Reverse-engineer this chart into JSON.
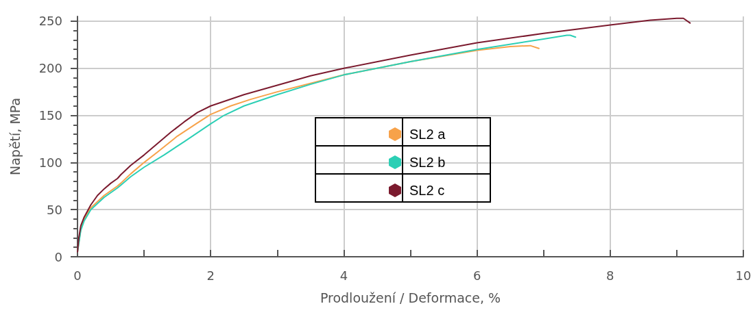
{
  "chart_data": {
    "type": "line",
    "xlabel": "Prodloužení / Deformace, %",
    "ylabel": "Napětí, MPa",
    "xlim": [
      0,
      10
    ],
    "xticks": [
      0,
      2,
      4,
      6,
      8,
      10
    ],
    "ylim": [
      0,
      255
    ],
    "yticks": [
      0,
      50,
      100,
      150,
      200,
      250
    ],
    "grid": true,
    "legend": "center",
    "marker": "none",
    "line_style": "solid",
    "series": [
      {
        "name": "SL2 a",
        "color": "#f7a24a",
        "x": [
          0,
          0.05,
          0.1,
          0.2,
          0.4,
          0.6,
          0.65,
          0.8,
          1.0,
          1.2,
          1.5,
          1.8,
          2.0,
          2.3,
          2.6,
          3,
          3.5,
          4,
          5,
          6,
          6.5,
          6.8,
          6.93
        ],
        "values": [
          5,
          30,
          40,
          52,
          65,
          75,
          78,
          88,
          100,
          111,
          128,
          142,
          151,
          160,
          167,
          175,
          184,
          193,
          207,
          219,
          223,
          224,
          221
        ]
      },
      {
        "name": "SL2 b",
        "color": "#2ccfb5",
        "x": [
          0,
          0.05,
          0.1,
          0.2,
          0.4,
          0.6,
          0.65,
          0.8,
          1.0,
          1.3,
          1.6,
          2.0,
          2.2,
          2.5,
          3,
          3.5,
          4,
          5,
          6,
          7,
          7.35,
          7.4,
          7.48
        ],
        "values": [
          5,
          28,
          38,
          50,
          63,
          73,
          76,
          85,
          95,
          108,
          122,
          141,
          150,
          160,
          172,
          183,
          193,
          207,
          220,
          231,
          235,
          235,
          233
        ]
      },
      {
        "name": "SL2 c",
        "color": "#7b1a2e",
        "x": [
          0,
          0.02,
          0.05,
          0.1,
          0.2,
          0.3,
          0.4,
          0.5,
          0.6,
          0.65,
          0.8,
          1.0,
          1.2,
          1.4,
          1.6,
          1.8,
          2.0,
          2.5,
          3,
          3.5,
          4,
          5,
          6,
          7,
          8,
          8.6,
          9.0,
          9.1,
          9.2
        ],
        "values": [
          5,
          20,
          33,
          42,
          55,
          65,
          72,
          78,
          83,
          87,
          97,
          108,
          120,
          132,
          143,
          153,
          160,
          172,
          182,
          192,
          200,
          214,
          227,
          237,
          246,
          251,
          253,
          253,
          248
        ]
      }
    ]
  }
}
